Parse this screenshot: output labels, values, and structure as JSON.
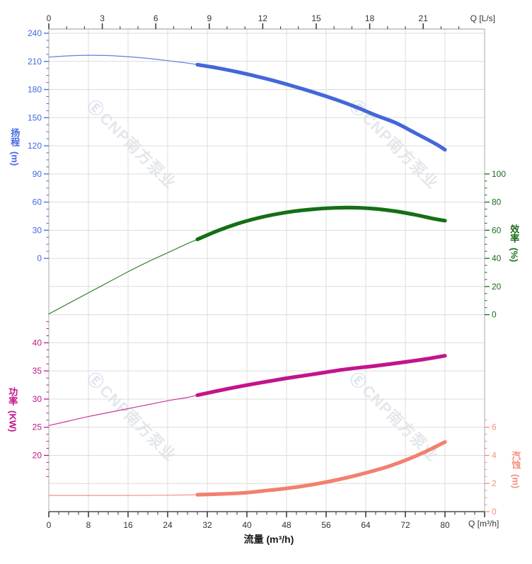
{
  "watermark": {
    "logo_glyph": "Ⓔ",
    "text": "CNP南方泵业"
  },
  "axis_titles": {
    "head": {
      "text": "扬程",
      "unit": "(m)"
    },
    "power": {
      "text": "功率",
      "unit": "(KW)"
    },
    "efficiency": {
      "text": "效率",
      "unit": "(%)"
    },
    "npsh": {
      "text": "汽蚀",
      "unit": "(m)"
    }
  },
  "chart_data": {
    "type": "line",
    "title": "",
    "grid": true,
    "colors": {
      "grid": "#dcdcdc",
      "frame_top": "#acacac",
      "frame_side": "#b9b9b9",
      "frame_bottom": "#4d4d4d",
      "axis_text": "#333333"
    },
    "x_bottom": {
      "label": "流量 (m³/h)",
      "unit_label": "Q [m³/h]",
      "range": [
        0,
        88
      ],
      "major_step": 8,
      "minor_step": 2,
      "major_ticks": [
        0,
        8,
        16,
        24,
        32,
        40,
        48,
        56,
        64,
        72,
        80
      ]
    },
    "x_top": {
      "unit_label": "Q [L/s]",
      "range": [
        0,
        23.5
      ],
      "major_step": 3,
      "minor_step": 1,
      "units_per_m3h": 3.6,
      "major_ticks": [
        0,
        3,
        6,
        9,
        12,
        15,
        18,
        21
      ]
    },
    "y_axes": {
      "head": {
        "side": "left",
        "color": "#4169e1",
        "anchor_row": 0,
        "anchor_value": 240,
        "units_per_division": 30,
        "major_step": 30,
        "minor_step": 7.5,
        "minor_range": [
          7.5,
          232.5
        ],
        "major_ticks": [
          240,
          210,
          180,
          150,
          120,
          90,
          60,
          30,
          0
        ]
      },
      "efficiency": {
        "side": "right",
        "color": "#1b6e1b",
        "anchor_row": 5,
        "anchor_value": 100,
        "units_per_division": 20,
        "major_step": 20,
        "minor_step": 5,
        "minor_range": [
          5,
          95
        ],
        "major_ticks": [
          100,
          80,
          60,
          40,
          20,
          0
        ]
      },
      "power": {
        "side": "left",
        "color": "#c2148c",
        "anchor_row": 11,
        "anchor_value": 40,
        "units_per_division": 5,
        "major_step": 5,
        "minor_step": 1.25,
        "minor_range": [
          16.25,
          43.75
        ],
        "major_ticks": [
          40,
          35,
          30,
          25,
          20
        ]
      },
      "npsh": {
        "side": "right",
        "color": "#f5907e",
        "anchor_row": 14,
        "anchor_value": 6,
        "units_per_division": 2,
        "major_step": 2,
        "minor_step": 0.5,
        "minor_range": [
          0.5,
          6.5
        ],
        "major_ticks": [
          6,
          4,
          2,
          0
        ]
      }
    },
    "series": [
      {
        "id": "head-curve",
        "name": "扬程",
        "axis": "head",
        "color": "#4467d9",
        "thick_from": 30,
        "points": [
          [
            0,
            214.6
          ],
          [
            4,
            215.9
          ],
          [
            8,
            216.5
          ],
          [
            12,
            216.2
          ],
          [
            16,
            215.0
          ],
          [
            20,
            213.2
          ],
          [
            24,
            210.8
          ],
          [
            28,
            208.2
          ],
          [
            30,
            206.5
          ],
          [
            34,
            203.0
          ],
          [
            38,
            198.8
          ],
          [
            42,
            194.0
          ],
          [
            46,
            188.6
          ],
          [
            50,
            182.6
          ],
          [
            54,
            176.2
          ],
          [
            58,
            169.2
          ],
          [
            62,
            161.4
          ],
          [
            66,
            152.6
          ],
          [
            70,
            144.6
          ],
          [
            74,
            133.6
          ],
          [
            78,
            122.4
          ],
          [
            80,
            115.8
          ]
        ]
      },
      {
        "id": "efficiency-curve",
        "name": "效率",
        "axis": "efficiency",
        "color": "#156f15",
        "thick_from": 30,
        "points": [
          [
            0,
            0.5
          ],
          [
            4,
            8.0
          ],
          [
            8,
            15.5
          ],
          [
            12,
            23.0
          ],
          [
            16,
            30.5
          ],
          [
            20,
            37.5
          ],
          [
            24,
            44.0
          ],
          [
            28,
            50.5
          ],
          [
            30,
            53.5
          ],
          [
            34,
            59.5
          ],
          [
            38,
            64.5
          ],
          [
            42,
            68.5
          ],
          [
            46,
            71.5
          ],
          [
            50,
            73.7
          ],
          [
            54,
            75.1
          ],
          [
            58,
            75.9
          ],
          [
            62,
            76.0
          ],
          [
            66,
            75.2
          ],
          [
            70,
            73.5
          ],
          [
            74,
            71.0
          ],
          [
            78,
            68.0
          ],
          [
            80,
            66.8
          ]
        ]
      },
      {
        "id": "power-curve",
        "name": "功率",
        "axis": "power",
        "color": "#c2148c",
        "thick_from": 30,
        "points": [
          [
            0,
            25.3
          ],
          [
            4,
            26.1
          ],
          [
            8,
            26.9
          ],
          [
            12,
            27.6
          ],
          [
            16,
            28.3
          ],
          [
            20,
            29.0
          ],
          [
            24,
            29.7
          ],
          [
            28,
            30.3
          ],
          [
            30,
            30.7
          ],
          [
            36,
            31.8
          ],
          [
            42,
            32.8
          ],
          [
            48,
            33.7
          ],
          [
            54,
            34.5
          ],
          [
            60,
            35.3
          ],
          [
            66,
            35.9
          ],
          [
            72,
            36.6
          ],
          [
            76,
            37.1
          ],
          [
            80,
            37.7
          ]
        ]
      },
      {
        "id": "npsh-curve",
        "name": "汽蚀",
        "axis": "npsh",
        "color": "#f28070",
        "thick_from": 30,
        "points": [
          [
            0,
            1.15
          ],
          [
            8,
            1.15
          ],
          [
            16,
            1.15
          ],
          [
            24,
            1.17
          ],
          [
            30,
            1.2
          ],
          [
            36,
            1.27
          ],
          [
            40,
            1.35
          ],
          [
            44,
            1.5
          ],
          [
            48,
            1.65
          ],
          [
            52,
            1.85
          ],
          [
            56,
            2.1
          ],
          [
            60,
            2.4
          ],
          [
            64,
            2.75
          ],
          [
            68,
            3.15
          ],
          [
            72,
            3.65
          ],
          [
            76,
            4.25
          ],
          [
            80,
            4.95
          ]
        ]
      }
    ]
  }
}
